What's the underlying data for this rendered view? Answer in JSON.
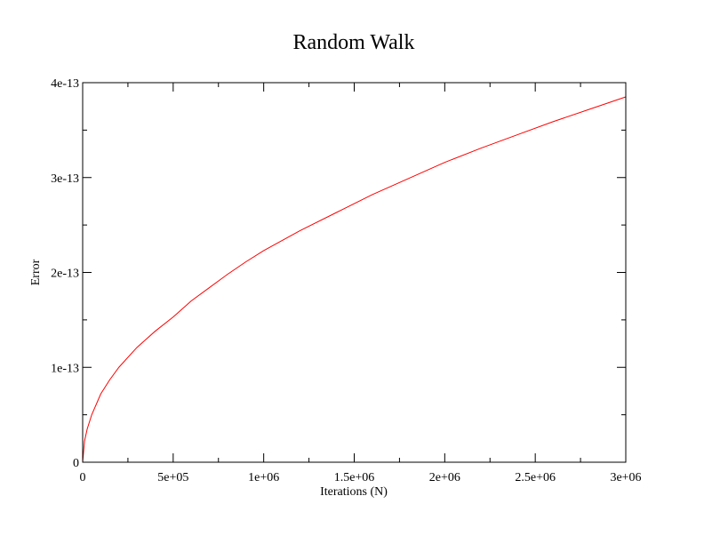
{
  "chart_data": {
    "type": "line",
    "title": "Random Walk",
    "xlabel": "Iterations (N)",
    "ylabel": "Error",
    "xlim": [
      0,
      3000000
    ],
    "ylim": [
      0,
      4e-13
    ],
    "x_ticks": [
      0,
      500000,
      1000000,
      1500000,
      2000000,
      2500000,
      3000000
    ],
    "x_tick_labels": [
      "0",
      "5e+05",
      "1e+06",
      "1.5e+06",
      "2e+06",
      "2.5e+06",
      "3e+06"
    ],
    "y_ticks": [
      0,
      1e-13,
      2e-13,
      3e-13,
      4e-13
    ],
    "y_tick_labels": [
      "0",
      "1e-13",
      "2e-13",
      "3e-13",
      "4e-13"
    ],
    "grid": false,
    "legend": "none",
    "series": [
      {
        "color": "#ff0000",
        "x": [
          0,
          10000,
          25000,
          50000,
          100000,
          150000,
          200000,
          300000,
          400000,
          500000,
          600000,
          700000,
          800000,
          900000,
          1000000,
          1200000,
          1400000,
          1600000,
          1800000,
          2000000,
          2200000,
          2400000,
          2600000,
          2800000,
          3000000
        ],
        "y": [
          0,
          2.2e-14,
          3.5e-14,
          5e-14,
          7.2e-14,
          8.7e-14,
          1e-13,
          1.21e-13,
          1.38e-13,
          1.53e-13,
          1.7e-13,
          1.84e-13,
          1.98e-13,
          2.11e-13,
          2.23e-13,
          2.44e-13,
          2.63e-13,
          2.82e-13,
          2.99e-13,
          3.16e-13,
          3.31e-13,
          3.45e-13,
          3.59e-13,
          3.72e-13,
          3.85e-13
        ]
      }
    ]
  }
}
